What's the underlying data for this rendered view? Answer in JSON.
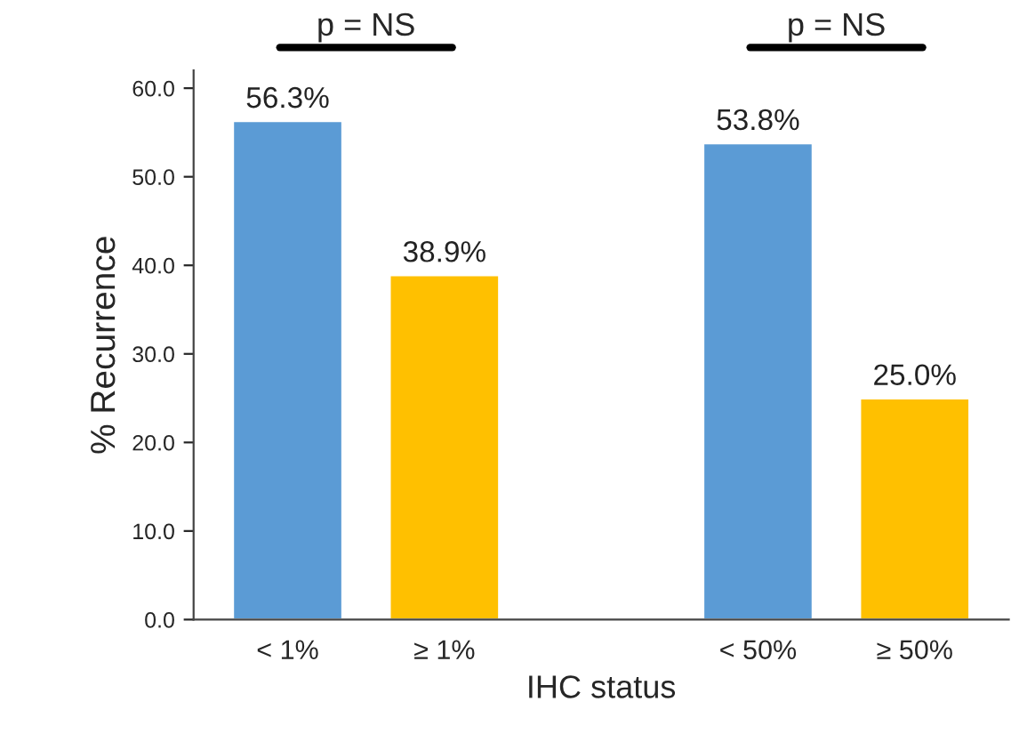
{
  "chart_data": {
    "type": "bar",
    "ylabel": "% Recurrence",
    "xlabel": "IHC status",
    "categories": [
      "< 1%",
      "≥ 1%",
      null,
      "< 50%",
      "≥ 50%"
    ],
    "values": [
      56.3,
      38.9,
      null,
      53.8,
      25.0
    ],
    "value_labels": [
      "56.3%",
      "38.9%",
      null,
      "53.8%",
      "25.0%"
    ],
    "colors": [
      "#5b9bd5",
      "#ffc000",
      null,
      "#5b9bd5",
      "#ffc000"
    ],
    "ylim": [
      0,
      62
    ],
    "yticks": [
      {
        "value": 0,
        "label": "0.0"
      },
      {
        "value": 10,
        "label": "10.0"
      },
      {
        "value": 20,
        "label": "20.0"
      },
      {
        "value": 30,
        "label": "30.0"
      },
      {
        "value": 40,
        "label": "40.0"
      },
      {
        "value": 50,
        "label": "50.0"
      },
      {
        "value": 60,
        "label": "60.0"
      }
    ],
    "annotations": [
      "p = NS",
      "p = NS"
    ],
    "grid": false,
    "legend": false
  }
}
